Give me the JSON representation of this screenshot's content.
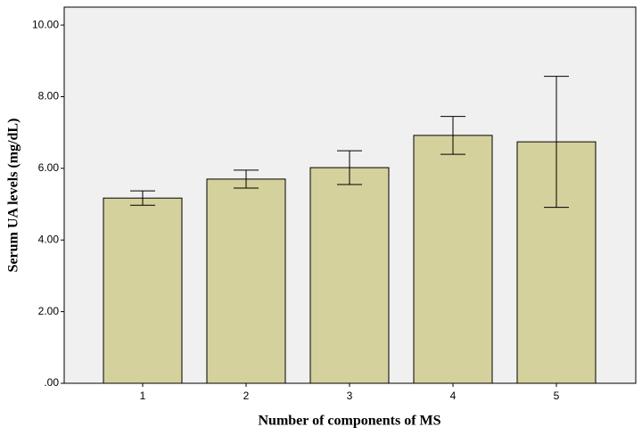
{
  "chart_data": {
    "type": "bar",
    "x_label": "Number of components of MS",
    "y_label": "Serum UA levels (mg/dL)",
    "categories": [
      "1",
      "2",
      "3",
      "4",
      "5"
    ],
    "values": [
      5.17,
      5.7,
      6.02,
      6.92,
      6.74
    ],
    "errors": [
      0.2,
      0.25,
      0.47,
      0.53,
      1.83
    ],
    "color": "#d4d19c",
    "ylim": [
      0,
      10.5
    ],
    "yticks": [
      {
        "value": 0,
        "label": ".00"
      },
      {
        "value": 2,
        "label": "2.00"
      },
      {
        "value": 4,
        "label": "4.00"
      },
      {
        "value": 6,
        "label": "6.00"
      },
      {
        "value": 8,
        "label": "8.00"
      },
      {
        "value": 10,
        "label": "10.00"
      }
    ],
    "grid": false
  }
}
